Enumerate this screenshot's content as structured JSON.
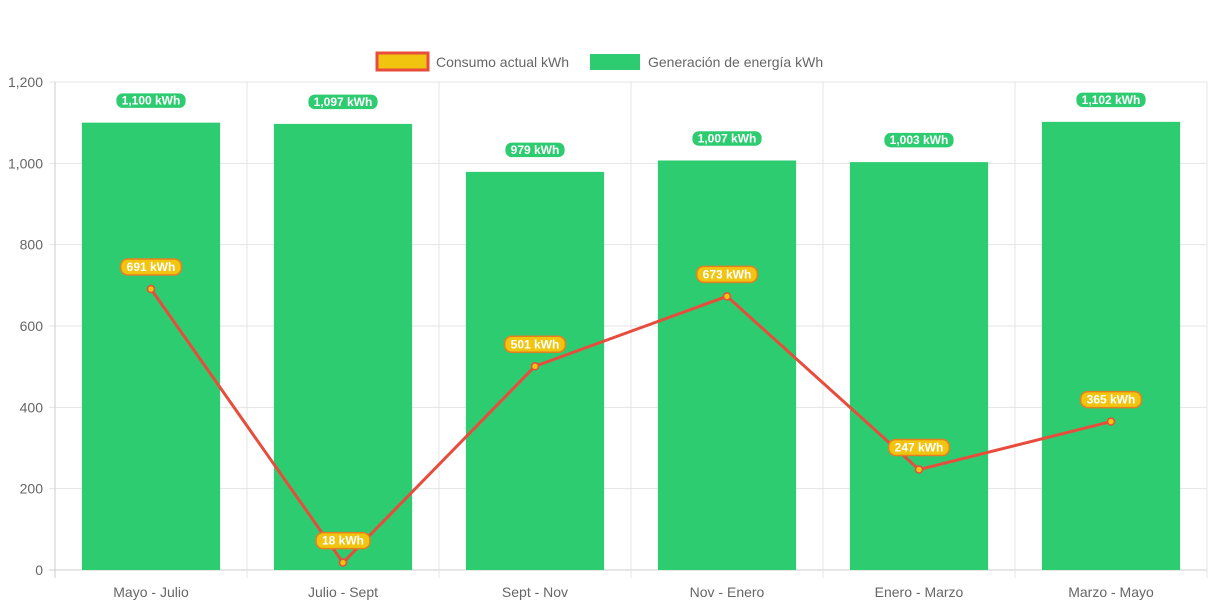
{
  "chart_data": {
    "type": "bar",
    "categories": [
      "Mayo - Julio",
      "Julio - Sept",
      "Sept - Nov",
      "Nov - Enero",
      "Enero - Marzo",
      "Marzo - Mayo"
    ],
    "series": [
      {
        "name": "Consumo actual kWh",
        "type": "line",
        "values": [
          691,
          18,
          501,
          673,
          247,
          365
        ],
        "labels": [
          "691 kWh",
          "18 kWh",
          "501 kWh",
          "673 kWh",
          "247 kWh",
          "365 kWh"
        ],
        "color": "#e74c3c",
        "fill": "#f1c40f"
      },
      {
        "name": "Generación de energía kWh",
        "type": "bar",
        "values": [
          1100,
          1097,
          979,
          1007,
          1003,
          1102
        ],
        "labels": [
          "1,100 kWh",
          "1,097 kWh",
          "979 kWh",
          "1,007 kWh",
          "1,003 kWh",
          "1,102 kWh"
        ],
        "color": "#2ecc71"
      }
    ],
    "ylim": [
      0,
      1200
    ],
    "yticks": [
      "0",
      "200",
      "400",
      "600",
      "800",
      "1,000",
      "1,200"
    ],
    "grid": true,
    "legend_position": "top-center"
  }
}
